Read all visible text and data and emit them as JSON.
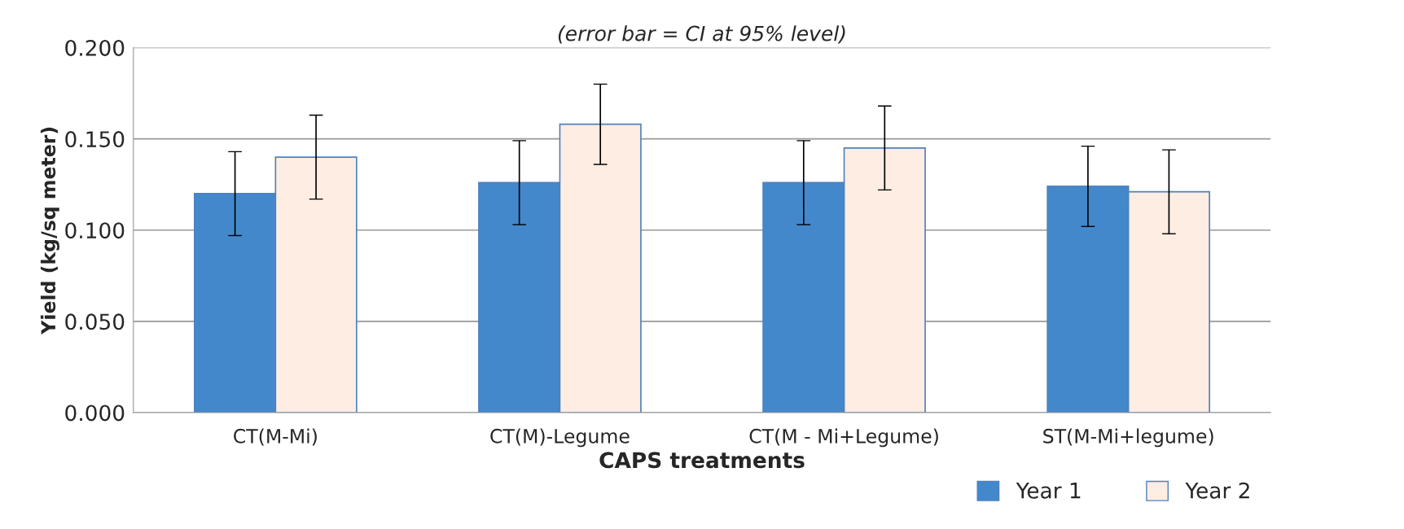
{
  "chart_data": {
    "type": "bar",
    "subtitle": "(error bar = CI at 95% level)",
    "xlabel": "CAPS treatments",
    "ylabel": "Yield (kg/sq meter)",
    "categories": [
      "CT(M-Mi)",
      "CT(M)-Legume",
      "CT(M - Mi+Legume)",
      "ST(M-Mi+legume)"
    ],
    "series": [
      {
        "name": "Year 1",
        "color": "#4488cc",
        "values": [
          0.12,
          0.126,
          0.126,
          0.124
        ],
        "errors": [
          0.023,
          0.023,
          0.023,
          0.022
        ]
      },
      {
        "name": "Year 2",
        "color": "#fdede2",
        "values": [
          0.14,
          0.158,
          0.145,
          0.121
        ],
        "errors": [
          0.023,
          0.022,
          0.023,
          0.023
        ]
      }
    ],
    "ylim": [
      0,
      0.2
    ],
    "yticks": [
      {
        "value": 0,
        "label": "0.000"
      },
      {
        "value": 0.05,
        "label": "0.050"
      },
      {
        "value": 0.1,
        "label": "0.100"
      },
      {
        "value": 0.15,
        "label": "0.150"
      },
      {
        "value": 0.2,
        "label": "0.200"
      }
    ],
    "grid": "y",
    "legend": "bottom right"
  }
}
